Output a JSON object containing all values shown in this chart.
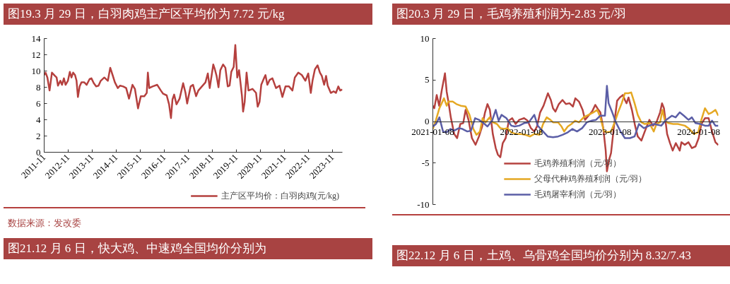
{
  "chart_data": [
    {
      "type": "line",
      "title": "图19.3 月 29 日，白羽肉鸡主产区平均价为 7.72 元/kg",
      "x": [
        "2011-11-01",
        "2011-11-22",
        "2011-12-20",
        "2012-01-22",
        "2012-02-27",
        "2012-04-13",
        "2012-05-08",
        "2012-05-29",
        "2012-07-04",
        "2012-07-29",
        "2012-08-27",
        "2012-09-21",
        "2012-10-27",
        "2012-11-25",
        "2012-12-20",
        "2013-01-14",
        "2013-02-12",
        "2013-03-07",
        "2013-03-28",
        "2013-04-23",
        "2013-05-21",
        "2013-07-03",
        "2013-08-08",
        "2013-09-21",
        "2013-10-19",
        "2013-11-24",
        "2013-12-30",
        "2014-02-04",
        "2014-03-10",
        "2014-05-03",
        "2014-06-26",
        "2014-08-01",
        "2014-09-06",
        "2014-10-11",
        "2014-11-24",
        "2014-12-29",
        "2015-02-14",
        "2015-03-31",
        "2015-05-13",
        "2015-07-05",
        "2015-08-11",
        "2015-09-27",
        "2015-11-09",
        "2016-01-01",
        "2016-02-07",
        "2016-02-24",
        "2016-03-16",
        "2016-05-05",
        "2016-07-15",
        "2016-09-08",
        "2016-10-13",
        "2016-12-06",
        "2017-01-11",
        "2017-02-09",
        "2017-03-04",
        "2017-03-29",
        "2017-05-04",
        "2017-06-20",
        "2017-08-13",
        "2017-09-18",
        "2017-10-13",
        "2017-12-05",
        "2018-01-10",
        "2018-02-26",
        "2018-04-01",
        "2018-05-25",
        "2018-07-18",
        "2018-08-23",
        "2018-09-21",
        "2018-11-14",
        "2018-12-08",
        "2019-01-03",
        "2019-02-01",
        "2019-03-01",
        "2019-04-12",
        "2019-05-17",
        "2019-06-22",
        "2019-07-20",
        "2019-08-15",
        "2019-09-20",
        "2019-10-15",
        "2019-11-13",
        "2019-12-11",
        "2020-01-23",
        "2020-02-10",
        "2020-03-05",
        "2020-04-03",
        "2020-05-02",
        "2020-07-02",
        "2020-08-25",
        "2020-09-19",
        "2020-10-17",
        "2020-11-12",
        "2020-12-28",
        "2021-01-15",
        "2021-02-13",
        "2021-03-19",
        "2021-05-01",
        "2021-06-24",
        "2021-08-17",
        "2021-09-29",
        "2021-11-15",
        "2022-01-08",
        "2022-03-01",
        "2022-04-06",
        "2022-05-29",
        "2022-07-22",
        "2022-09-14",
        "2022-10-27",
        "2022-12-05",
        "2022-12-31",
        "2023-02-05",
        "2023-03-18",
        "2023-04-23",
        "2023-05-21",
        "2023-06-26",
        "2023-07-25",
        "2023-08-19",
        "2023-10-05",
        "2023-11-17",
        "2023-12-22",
        "2024-01-27",
        "2024-02-25",
        "2024-03-29"
      ],
      "series": [
        {
          "name": "主产区平均价：白羽肉鸡(元/kg)",
          "color": "#b5403e",
          "values": [
            9.5,
            9.8,
            9.2,
            7.6,
            9.8,
            9.4,
            9.2,
            8.2,
            8.8,
            8.3,
            9.1,
            8.3,
            8.8,
            9.9,
            9.2,
            9.8,
            9.5,
            8.8,
            6.8,
            8.1,
            8.6,
            8.6,
            8.3,
            9.0,
            9.1,
            8.5,
            8.1,
            8.2,
            8.8,
            9.2,
            8.8,
            10.4,
            9.5,
            8.6,
            7.9,
            8.2,
            8.1,
            7.9,
            6.6,
            8.3,
            7.8,
            5.4,
            6.9,
            6.9,
            7.3,
            9.8,
            7.9,
            8.1,
            8.3,
            7.6,
            7.2,
            7.0,
            5.9,
            4.2,
            6.5,
            7.1,
            5.9,
            6.6,
            8.5,
            7.3,
            6.0,
            8.1,
            8.3,
            6.9,
            7.6,
            8.1,
            8.6,
            9.7,
            7.9,
            10.8,
            10.2,
            9.4,
            8.0,
            10.1,
            10.8,
            10.4,
            8.1,
            8.2,
            9.9,
            10.5,
            13.2,
            9.2,
            10.1,
            7.0,
            5.0,
            6.2,
            9.8,
            7.6,
            7.8,
            7.3,
            5.6,
            6.2,
            8.3,
            9.2,
            9.5,
            8.3,
            8.9,
            9.1,
            7.9,
            8.2,
            6.8,
            8.1,
            8.1,
            7.6,
            9.2,
            9.8,
            9.5,
            8.8,
            9.7,
            7.3,
            8.8,
            10.2,
            10.7,
            9.8,
            9.4,
            8.3,
            9.4,
            8.2,
            7.3,
            7.5,
            7.3,
            8.1,
            7.6,
            7.72
          ]
        }
      ],
      "xlim": [
        "2011-11-01",
        "2024-03-29"
      ],
      "xticks": [
        "2011-11",
        "2012-11",
        "2013-11",
        "2014-11",
        "2015-11",
        "2016-11",
        "2017-11",
        "2018-11",
        "2019-11",
        "2020-11",
        "2021-11",
        "2022-11",
        "2023-11"
      ],
      "ylim": [
        0,
        14
      ],
      "yticks": [
        0,
        2,
        4,
        6,
        8,
        10,
        12,
        14
      ],
      "legend": "bottom",
      "annotations": [
        "数据来源：发改委",
        "图21.12 月 6 日，快大鸡、中速鸡全国均价分别为"
      ]
    },
    {
      "type": "line",
      "title": "图20.3 月 29 日，毛鸡养殖利润为-2.83 元/羽",
      "series": [
        {
          "name": "毛鸡养殖利润（元/羽）",
          "color": "#b5423f",
          "x": [
            "2021-01-08",
            "2021-01-14",
            "2021-01-24",
            "2021-02-03",
            "2021-02-14",
            "2021-02-27",
            "2021-03-06",
            "2021-03-13",
            "2021-03-23",
            "2021-04-06",
            "2021-04-18",
            "2021-05-01",
            "2021-05-13",
            "2021-05-23",
            "2021-06-04",
            "2021-06-18",
            "2021-07-03",
            "2021-07-17",
            "2021-07-30",
            "2021-08-11",
            "2021-08-21",
            "2021-08-31",
            "2021-09-12",
            "2021-09-24",
            "2021-10-03",
            "2021-10-13",
            "2021-10-23",
            "2021-11-04",
            "2021-11-17",
            "2021-12-01",
            "2021-12-15",
            "2021-12-30",
            "2022-01-19",
            "2022-02-02",
            "2022-02-16",
            "2022-03-02",
            "2022-03-13",
            "2022-03-26",
            "2022-04-09",
            "2022-04-27",
            "2022-05-09",
            "2022-05-18",
            "2022-05-28",
            "2022-06-11",
            "2022-06-26",
            "2022-07-10",
            "2022-07-25",
            "2022-08-08",
            "2022-08-18",
            "2022-09-02",
            "2022-09-17",
            "2022-09-27",
            "2022-10-11",
            "2022-10-26",
            "2022-11-08",
            "2022-11-19",
            "2022-11-29",
            "2022-12-11",
            "2022-12-21",
            "2022-12-26",
            "2023-01-04",
            "2023-01-12",
            "2023-01-25",
            "2023-02-06",
            "2023-02-17",
            "2023-03-02",
            "2023-03-10",
            "2023-03-17",
            "2023-03-25",
            "2023-04-08",
            "2023-04-21",
            "2023-05-02",
            "2023-05-17",
            "2023-05-31",
            "2023-06-19",
            "2023-07-04",
            "2023-07-18",
            "2023-08-02",
            "2023-08-10",
            "2023-08-18",
            "2023-08-31",
            "2023-09-12",
            "2023-09-23",
            "2023-10-06",
            "2023-10-22",
            "2023-10-29",
            "2023-11-12",
            "2023-11-27",
            "2023-12-11",
            "2023-12-26",
            "2024-01-08",
            "2024-01-19",
            "2024-02-03",
            "2024-02-18",
            "2024-03-03",
            "2024-03-17",
            "2024-03-29"
          ],
          "values": [
            1.9,
            1.6,
            3.2,
            1.9,
            3.8,
            5.8,
            3.6,
            2.4,
            0.5,
            -1.5,
            -2.0,
            -0.3,
            -0.2,
            1.4,
            0.2,
            -2.0,
            -2.8,
            -1.8,
            -0.6,
            1.1,
            2.1,
            1.4,
            -1.5,
            -3.2,
            -4.0,
            -4.3,
            -2.6,
            -2.0,
            0.1,
            0.4,
            -0.3,
            0.2,
            0.4,
            0.1,
            -0.8,
            -1.2,
            -0.6,
            1.1,
            1.9,
            3.4,
            2.6,
            1.6,
            1.2,
            2.1,
            2.6,
            2.1,
            2.2,
            1.8,
            2.8,
            2.4,
            1.4,
            0.2,
            0.7,
            1.2,
            2.0,
            1.5,
            1.1,
            -0.8,
            -3.5,
            -6.0,
            -4.6,
            -3.8,
            -0.3,
            2.5,
            2.9,
            3.2,
            2.6,
            2.2,
            2.9,
            1.4,
            -0.5,
            -1.8,
            -2.3,
            -1.2,
            0.2,
            -0.5,
            -0.1,
            1.1,
            2.2,
            1.6,
            -1.5,
            -2.6,
            -3.5,
            -2.6,
            -3.5,
            -2.5,
            -2.8,
            -2.5,
            -3.2,
            -3.0,
            -2.0,
            -0.3,
            0.4,
            0.4,
            -1.2,
            -2.5,
            -2.83
          ]
        },
        {
          "name": "父母代种鸡养殖利润（元/羽）",
          "color": "#e5a823",
          "x": [
            "2021-01-08",
            "2021-01-21",
            "2021-02-04",
            "2021-02-23",
            "2021-03-06",
            "2021-03-13",
            "2021-03-31",
            "2021-04-15",
            "2021-05-03",
            "2021-05-23",
            "2021-06-08",
            "2021-06-24",
            "2021-07-07",
            "2021-07-21",
            "2021-08-01",
            "2021-08-13",
            "2021-08-30",
            "2021-09-12",
            "2021-09-29",
            "2021-10-13",
            "2021-10-28",
            "2021-11-11",
            "2021-11-27",
            "2021-12-15",
            "2022-01-04",
            "2022-01-24",
            "2022-02-12",
            "2022-03-02",
            "2022-03-23",
            "2022-04-07",
            "2022-04-22",
            "2022-05-07",
            "2022-05-18",
            "2022-06-08",
            "2022-06-22",
            "2022-07-03",
            "2022-07-18",
            "2022-08-02",
            "2022-08-17",
            "2022-09-02",
            "2022-09-21",
            "2022-10-11",
            "2022-10-31",
            "2022-11-16",
            "2022-11-29",
            "2022-12-14",
            "2022-12-29",
            "2023-01-12",
            "2023-01-27",
            "2023-02-10",
            "2023-02-25",
            "2023-03-10",
            "2023-03-24",
            "2023-04-05",
            "2023-04-19",
            "2023-05-02",
            "2023-05-17",
            "2023-05-31",
            "2023-06-19",
            "2023-07-07",
            "2023-07-18",
            "2023-08-02",
            "2023-08-12",
            "2023-08-21",
            "2023-09-05",
            "2023-09-25",
            "2023-10-14",
            "2023-11-12",
            "2023-12-01",
            "2023-12-19",
            "2024-01-06",
            "2024-01-19",
            "2024-02-03",
            "2024-02-18",
            "2024-03-03",
            "2024-03-17",
            "2024-03-29"
          ],
          "values": [
            -0.9,
            0.2,
            1.6,
            2.8,
            1.9,
            2.4,
            2.4,
            2.1,
            1.9,
            1.8,
            0.8,
            -0.9,
            -1.6,
            -1.2,
            0.4,
            -0.1,
            0.5,
            -0.1,
            -0.3,
            -0.8,
            -0.9,
            -0.8,
            -1.3,
            -1.5,
            -1.5,
            -1.6,
            -1.8,
            -1.5,
            -1.6,
            -0.3,
            0.5,
            0.2,
            -0.1,
            -0.1,
            -0.6,
            -1.2,
            -0.6,
            -0.3,
            0.1,
            -0.1,
            0.5,
            0.8,
            1.1,
            1.4,
            0.5,
            -1.2,
            -1.3,
            -1.2,
            -0.1,
            1.1,
            2.2,
            3.4,
            3.4,
            3.5,
            2.2,
            0.8,
            -0.1,
            -0.3,
            -0.2,
            -1.2,
            -0.3,
            -0.1,
            1.4,
            0.2,
            -0.2,
            -0.3,
            -0.3,
            -0.5,
            -0.9,
            -1.5,
            -1.3,
            0.2,
            1.6,
            0.9,
            1.1,
            1.4,
            0.7
          ]
        },
        {
          "name": "毛鸡屠宰利润（元/羽）",
          "color": "#5b5ea6",
          "x": [
            "2021-01-08",
            "2021-01-21",
            "2021-02-04",
            "2021-02-19",
            "2021-03-06",
            "2021-03-22",
            "2021-04-06",
            "2021-04-25",
            "2021-05-10",
            "2021-05-30",
            "2021-06-14",
            "2021-07-01",
            "2021-07-17",
            "2021-08-01",
            "2021-08-21",
            "2021-09-09",
            "2021-09-24",
            "2021-10-06",
            "2021-10-18",
            "2021-11-07",
            "2021-11-27",
            "2021-12-11",
            "2021-12-30",
            "2022-01-19",
            "2022-02-07",
            "2022-03-02",
            "2022-03-16",
            "2022-04-07",
            "2022-04-26",
            "2022-05-18",
            "2022-06-08",
            "2022-06-26",
            "2022-07-18",
            "2022-08-06",
            "2022-08-25",
            "2022-09-15",
            "2022-10-04",
            "2022-10-24",
            "2022-11-11",
            "2022-11-29",
            "2022-12-18",
            "2022-12-26",
            "2023-01-02",
            "2023-01-17",
            "2023-02-01",
            "2023-02-20",
            "2023-03-10",
            "2023-03-31",
            "2023-04-19",
            "2023-05-07",
            "2023-05-27",
            "2023-06-19",
            "2023-07-08",
            "2023-08-07",
            "2023-08-27",
            "2023-09-20",
            "2023-10-05",
            "2023-10-22",
            "2023-11-08",
            "2023-11-27",
            "2023-12-11",
            "2023-12-26",
            "2024-01-15",
            "2024-02-03",
            "2024-02-18",
            "2024-03-03",
            "2024-03-17",
            "2024-03-29"
          ],
          "values": [
            -0.6,
            -0.3,
            0.5,
            -1.2,
            -1.3,
            -0.9,
            -1.1,
            -0.8,
            -0.9,
            -1.2,
            -1.1,
            0.4,
            0.2,
            -0.1,
            -0.6,
            0.1,
            1.4,
            0.1,
            0.8,
            0.4,
            -0.5,
            -0.6,
            -0.5,
            -0.2,
            -0.1,
            0.8,
            -0.5,
            -1.2,
            -1.8,
            -1.9,
            -1.8,
            -1.6,
            -1.3,
            -0.9,
            -1.2,
            -0.8,
            -0.1,
            0.1,
            0.2,
            0.7,
            0.7,
            4.3,
            2.2,
            1.1,
            -0.1,
            -1.2,
            -2.0,
            -2.0,
            -1.8,
            -0.3,
            -0.8,
            -0.5,
            -0.3,
            -0.5,
            0.2,
            0.7,
            0.5,
            1.1,
            0.7,
            0.2,
            0.5,
            -0.2,
            -0.3,
            -0.5,
            -0.5,
            0.1,
            -0.5,
            -0.5
          ]
        }
      ],
      "xlim": [
        "2021-01-08",
        "2024-03-29"
      ],
      "xticks": [
        "2021-01-08",
        "2022-01-08",
        "2023-01-08",
        "2024-01-08"
      ],
      "ylim": [
        -10,
        10
      ],
      "yticks": [
        -10,
        -5,
        0,
        5,
        10
      ],
      "legend": "bottom",
      "annotations": [
        "图22.12 月 6 日，土鸡、乌骨鸡全国均价分别为 8.32/7.43"
      ]
    }
  ]
}
